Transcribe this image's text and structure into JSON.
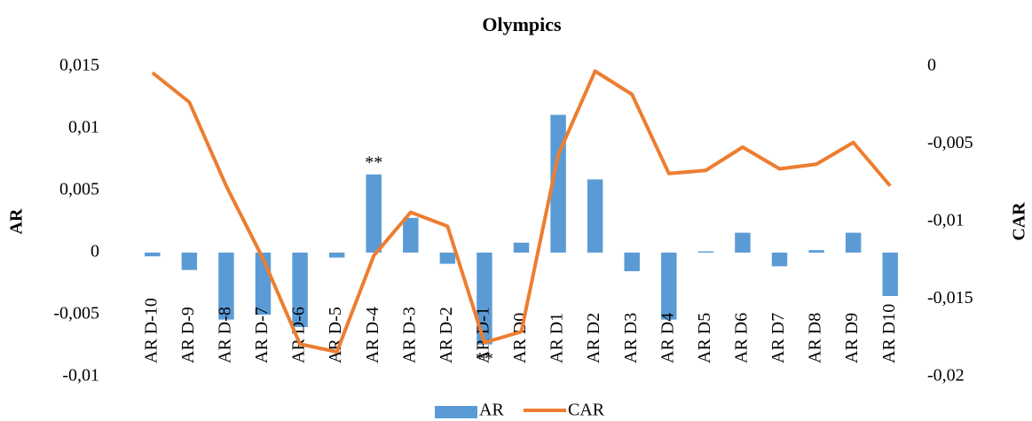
{
  "chart_data": {
    "type": "bar-line",
    "title": "Olympics",
    "y_label": "AR",
    "y2_label": "CAR",
    "categories": [
      "AR D-10",
      "AR D-9",
      "AR D-8",
      "AR D-7",
      "AR D-6",
      "AR D-5",
      "AR D-4",
      "AR D-3",
      "AR D-2",
      "AR D-1",
      "AR D0",
      "AR D1",
      "AR D2",
      "AR D3",
      "AR D4",
      "AR D5",
      "AR D6",
      "AR D7",
      "AR D8",
      "AR D9",
      "AR D10"
    ],
    "series": [
      {
        "name": "AR",
        "type": "bar",
        "color": "#5b9bd5",
        "values": [
          -0.0003,
          -0.0014,
          -0.0054,
          -0.005,
          -0.006,
          -0.0004,
          0.0063,
          0.0028,
          -0.0009,
          -0.0074,
          0.0008,
          0.0111,
          0.0059,
          -0.0015,
          -0.0054,
          0.0001,
          0.0016,
          -0.0011,
          0.0002,
          0.0016,
          -0.0035
        ]
      },
      {
        "name": "CAR",
        "type": "line",
        "axis": "y2",
        "color": "#ed7d31",
        "values": [
          -0.0004,
          -0.0023,
          -0.0077,
          -0.0124,
          -0.0179,
          -0.0184,
          -0.0122,
          -0.0094,
          -0.0103,
          -0.0178,
          -0.0171,
          -0.0057,
          -0.0003,
          -0.0018,
          -0.0069,
          -0.0067,
          -0.0052,
          -0.0066,
          -0.0063,
          -0.0049,
          -0.0077
        ]
      }
    ],
    "annotations": [
      {
        "text": "**",
        "category": "AR D-4"
      },
      {
        "text": "**",
        "category": "AR D-1"
      }
    ],
    "ylim": [
      -0.01,
      0.015
    ],
    "yticks": [
      {
        "value": -0.01,
        "label": "-0,01"
      },
      {
        "value": -0.005,
        "label": "-0,005"
      },
      0,
      {
        "value": 0.005,
        "label": "0,005"
      },
      {
        "value": 0.01,
        "label": "0,01"
      },
      {
        "value": 0.015,
        "label": "0,015"
      }
    ],
    "y2lim": [
      -0.02,
      0
    ],
    "y2ticks": [
      {
        "value": -0.02,
        "label": "-0,02"
      },
      {
        "value": -0.015,
        "label": "-0,015"
      },
      {
        "value": -0.01,
        "label": "-0,01"
      },
      {
        "value": -0.005,
        "label": "-0,005"
      },
      0
    ],
    "grid": false,
    "legend": "bottom"
  }
}
